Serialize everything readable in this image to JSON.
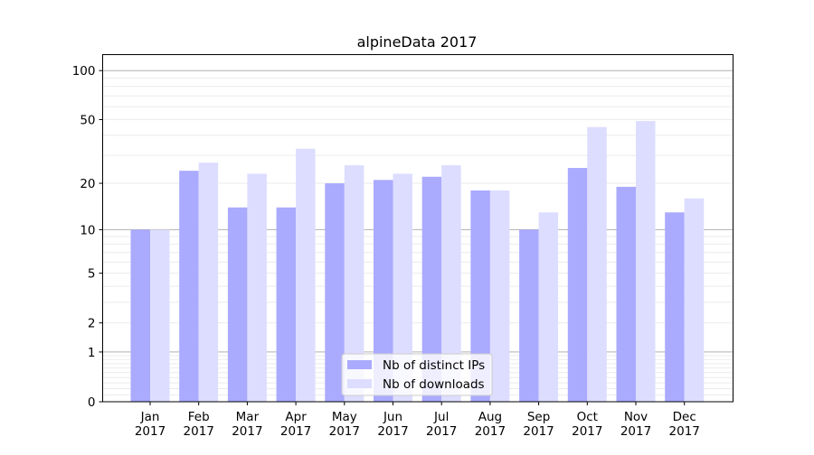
{
  "chart_data": {
    "type": "bar",
    "title": "alpineData 2017",
    "xlabel": "",
    "ylabel": "",
    "yscale": "symlog (log10(1+y))",
    "ylim": [
      0,
      126
    ],
    "yticks": [
      0,
      1,
      2,
      5,
      10,
      20,
      50,
      100
    ],
    "ytick_labels": [
      "0",
      "1",
      "2",
      "5",
      "10",
      "20",
      "50",
      "100"
    ],
    "grid": "y major and minor",
    "legend_position": "bottom-center",
    "categories": [
      [
        "Jan",
        "2017"
      ],
      [
        "Feb",
        "2017"
      ],
      [
        "Mar",
        "2017"
      ],
      [
        "Apr",
        "2017"
      ],
      [
        "May",
        "2017"
      ],
      [
        "Jun",
        "2017"
      ],
      [
        "Jul",
        "2017"
      ],
      [
        "Aug",
        "2017"
      ],
      [
        "Sep",
        "2017"
      ],
      [
        "Oct",
        "2017"
      ],
      [
        "Nov",
        "2017"
      ],
      [
        "Dec",
        "2017"
      ]
    ],
    "series": [
      {
        "name": "Nb of distinct IPs",
        "color": "#aaaaff",
        "values": [
          10,
          24,
          14,
          14,
          20,
          21,
          22,
          18,
          10,
          25,
          19,
          13
        ]
      },
      {
        "name": "Nb of downloads",
        "color": "#ddddff",
        "values": [
          10,
          27,
          23,
          33,
          26,
          23,
          26,
          18,
          13,
          45,
          49,
          16
        ]
      }
    ]
  }
}
